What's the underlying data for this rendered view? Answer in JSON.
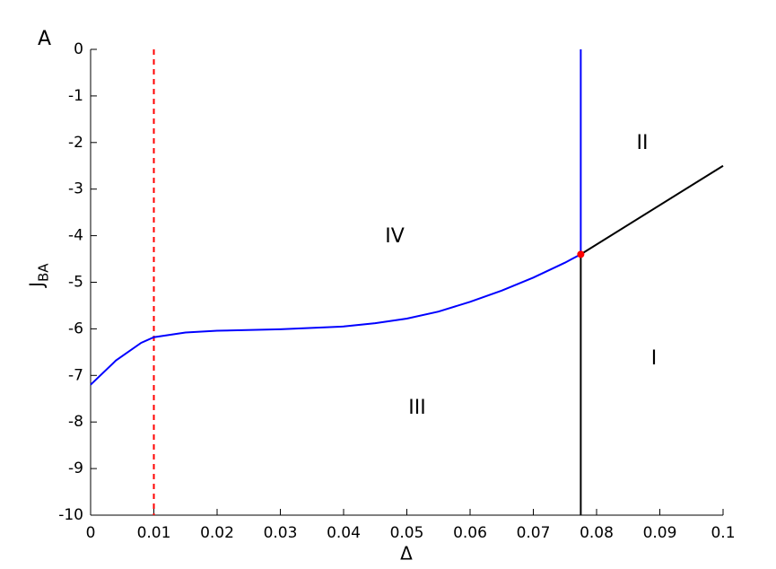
{
  "chart_data": {
    "type": "line",
    "panel_label": "A",
    "xlabel": "Δ",
    "ylabel": "J",
    "ylabel_sub": "BA",
    "xlim": [
      0,
      0.1
    ],
    "ylim": [
      -10,
      0
    ],
    "xticks": [
      0,
      0.01,
      0.02,
      0.03,
      0.04,
      0.05,
      0.06,
      0.07,
      0.08,
      0.09,
      0.1
    ],
    "yticks": [
      0,
      -1,
      -2,
      -3,
      -4,
      -5,
      -6,
      -7,
      -8,
      -9,
      -10
    ],
    "threshold_x": 0.01,
    "threshold_color": "#ff0000",
    "series": [
      {
        "color": "#0000ff",
        "x": [
          0,
          0.004,
          0.008,
          0.01,
          0.015,
          0.02,
          0.03,
          0.04,
          0.045,
          0.05,
          0.055,
          0.06,
          0.065,
          0.07,
          0.075,
          0.0775
        ],
        "values": [
          -7.2,
          -6.68,
          -6.3,
          -6.18,
          -6.08,
          -6.04,
          -6.01,
          -5.95,
          -5.88,
          -5.78,
          -5.63,
          -5.42,
          -5.18,
          -4.9,
          -4.58,
          -4.4
        ]
      },
      {
        "color": "#0000ff",
        "x": [
          0.0775,
          0.0775
        ],
        "values": [
          -4.4,
          0
        ]
      },
      {
        "color": "#000000",
        "x": [
          0.0775,
          0.1
        ],
        "values": [
          -4.4,
          -2.5
        ]
      },
      {
        "color": "#000000",
        "x": [
          0.0775,
          0.0775
        ],
        "values": [
          -4.4,
          -10
        ]
      }
    ],
    "point": {
      "color": "#ff0000",
      "x": 0.0775,
      "value": -4.4
    },
    "regions": [
      "I",
      "II",
      "III",
      "IV"
    ]
  }
}
